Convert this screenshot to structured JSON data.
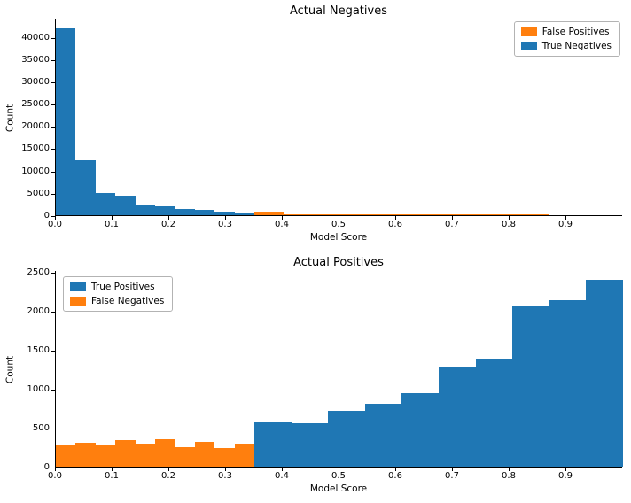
{
  "figure": {
    "background": "#ffffff"
  },
  "chart_data": [
    {
      "type": "bar",
      "title": "Actual Negatives",
      "xlabel": "Model Score",
      "ylabel": "Count",
      "xlim": [
        0,
        1.0
      ],
      "ylim": [
        0,
        44100
      ],
      "xticks": [
        0.0,
        0.1,
        0.2,
        0.3,
        0.4,
        0.5,
        0.6,
        0.7,
        0.8,
        0.9
      ],
      "xtick_labels": [
        "0.0",
        "0.1",
        "0.2",
        "0.3",
        "0.4",
        "0.5",
        "0.6",
        "0.7",
        "0.8",
        "0.9"
      ],
      "yticks": [
        0,
        5000,
        10000,
        15000,
        20000,
        25000,
        30000,
        35000,
        40000
      ],
      "ytick_labels": [
        "0",
        "5000",
        "10000",
        "15000",
        "20000",
        "25000",
        "30000",
        "35000",
        "40000"
      ],
      "grid": false,
      "legend": {
        "position": "top-right",
        "entries": [
          {
            "label": "False Positives",
            "color": "#ff7f0e"
          },
          {
            "label": "True Negatives",
            "color": "#1f77b4"
          }
        ]
      },
      "series": [
        {
          "name": "True Negatives",
          "color": "#1f77b4",
          "bin_start": 0.0,
          "bin_width": 0.035,
          "counts": [
            42000,
            12300,
            4900,
            4300,
            2100,
            1900,
            1300,
            1100,
            800,
            600
          ]
        },
        {
          "name": "False Positives",
          "color": "#ff7f0e",
          "bin_start": 0.35,
          "bin_width": 0.052,
          "counts": [
            700,
            250,
            180,
            150,
            130,
            110,
            90,
            70,
            50,
            40
          ]
        }
      ]
    },
    {
      "type": "bar",
      "title": "Actual Positives",
      "xlabel": "Model Score",
      "ylabel": "Count",
      "xlim": [
        0,
        1.0
      ],
      "ylim": [
        0,
        2520
      ],
      "xticks": [
        0.0,
        0.1,
        0.2,
        0.3,
        0.4,
        0.5,
        0.6,
        0.7,
        0.8,
        0.9
      ],
      "xtick_labels": [
        "0.0",
        "0.1",
        "0.2",
        "0.3",
        "0.4",
        "0.5",
        "0.6",
        "0.7",
        "0.8",
        "0.9"
      ],
      "yticks": [
        0,
        500,
        1000,
        1500,
        2000,
        2500
      ],
      "ytick_labels": [
        "0",
        "500",
        "1000",
        "1500",
        "2000",
        "2500"
      ],
      "grid": false,
      "legend": {
        "position": "top-left",
        "entries": [
          {
            "label": "True Positives",
            "color": "#1f77b4"
          },
          {
            "label": "False Negatives",
            "color": "#ff7f0e"
          }
        ]
      },
      "series": [
        {
          "name": "False Negatives",
          "color": "#ff7f0e",
          "bin_start": 0.0,
          "bin_width": 0.035,
          "counts": [
            270,
            310,
            280,
            345,
            290,
            350,
            250,
            320,
            240,
            290
          ]
        },
        {
          "name": "True Positives",
          "color": "#1f77b4",
          "bin_start": 0.35,
          "bin_width": 0.065,
          "counts": [
            580,
            555,
            720,
            810,
            940,
            1280,
            1390,
            2050,
            2130,
            2400
          ]
        }
      ]
    }
  ]
}
